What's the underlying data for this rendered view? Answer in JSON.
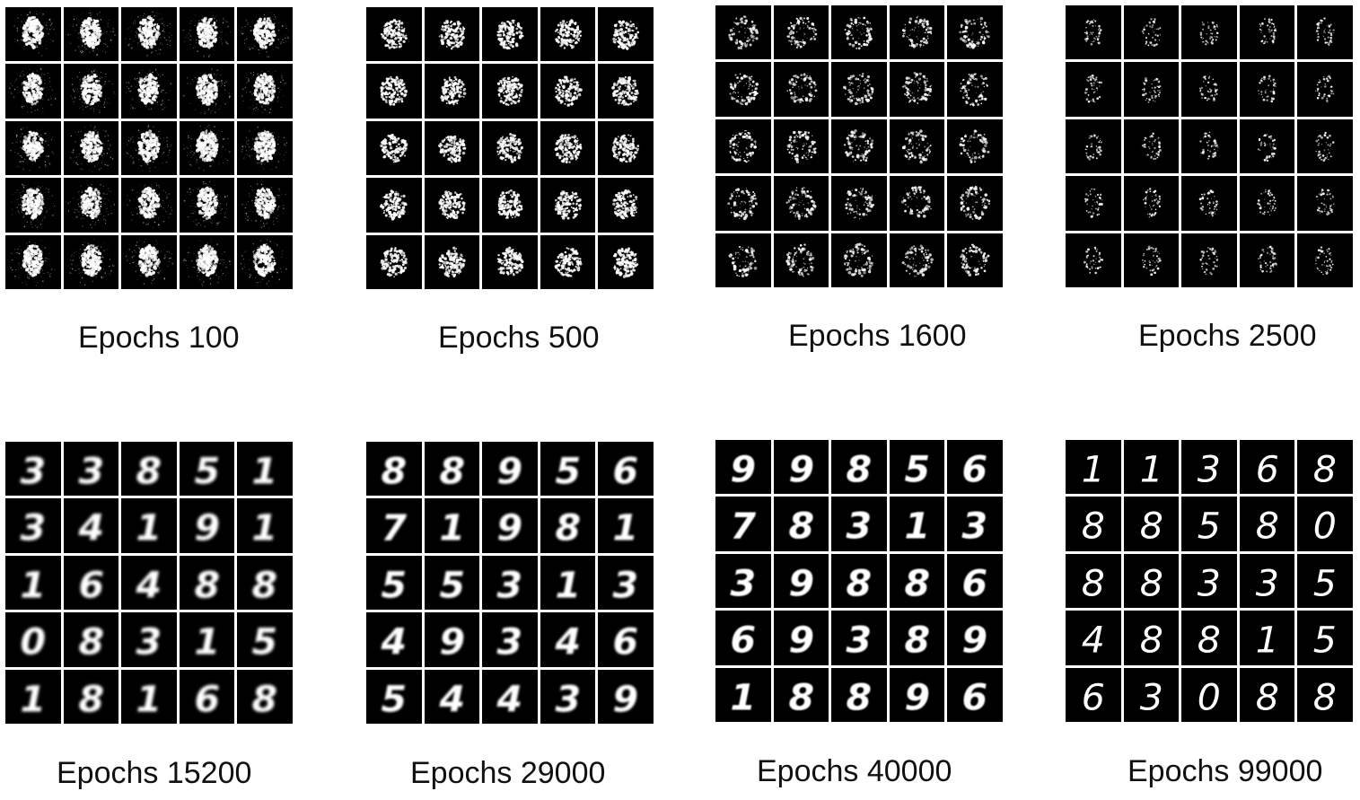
{
  "panels": [
    {
      "caption": "Epochs 100",
      "stage": "blob"
    },
    {
      "caption": "Epochs 500",
      "stage": "noise"
    },
    {
      "caption": "Epochs 1600",
      "stage": "ring"
    },
    {
      "caption": "Epochs 2500",
      "stage": "sparse"
    },
    {
      "caption": "Epochs 15200",
      "stage": "digits-rough"
    },
    {
      "caption": "Epochs 29000",
      "stage": "digits-blurry"
    },
    {
      "caption": "Epochs 40000",
      "stage": "digits-soft"
    },
    {
      "caption": "Epochs 99000",
      "stage": "digits-clear"
    }
  ],
  "digits": {
    "p4": [
      "3",
      "3",
      "8",
      "5",
      "1",
      "3",
      "4",
      "1",
      "9",
      "1",
      "1",
      "6",
      "4",
      "8",
      "8",
      "0",
      "8",
      "3",
      "1",
      "5",
      "1",
      "8",
      "1",
      "6",
      "8"
    ],
    "p5": [
      "8",
      "8",
      "9",
      "5",
      "6",
      "7",
      "1",
      "9",
      "8",
      "1",
      "5",
      "5",
      "3",
      "1",
      "3",
      "4",
      "9",
      "3",
      "4",
      "6",
      "5",
      "4",
      "4",
      "3",
      "9"
    ],
    "p6": [
      "9",
      "9",
      "8",
      "5",
      "6",
      "7",
      "8",
      "3",
      "1",
      "3",
      "3",
      "9",
      "8",
      "8",
      "6",
      "6",
      "9",
      "3",
      "8",
      "9",
      "1",
      "8",
      "8",
      "9",
      "6"
    ],
    "p7": [
      "1",
      "1",
      "3",
      "6",
      "8",
      "8",
      "8",
      "5",
      "8",
      "0",
      "8",
      "8",
      "3",
      "3",
      "5",
      "4",
      "8",
      "8",
      "1",
      "5",
      "6",
      "3",
      "0",
      "8",
      "8"
    ]
  },
  "colors": {
    "tile": "#000000",
    "grid_gap": "#ffffff",
    "ink": "#ffffff"
  }
}
